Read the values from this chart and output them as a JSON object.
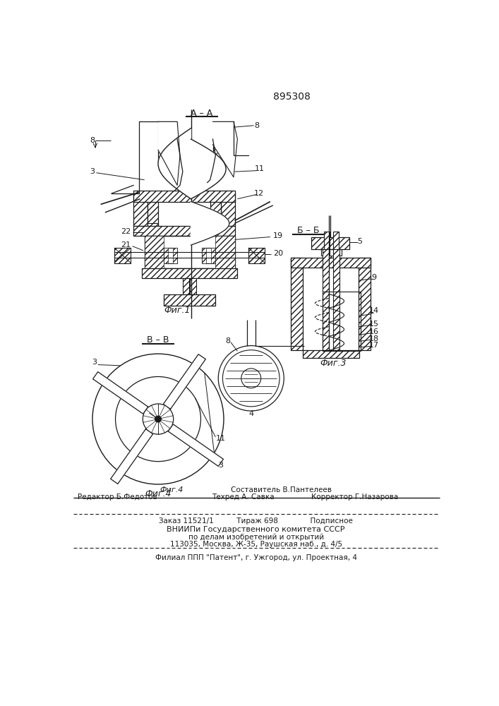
{
  "patent_number": "895308",
  "bg_color": "#ffffff",
  "line_color": "#1a1a1a",
  "footer_line1": "Фиг.4        Составитель В.Пантелеев",
  "footer_line2": "Редактор Б.Федотов      Техред А. Савка       Корректор Г.Назарова",
  "bottom_line1": "Заказ 11521/1          Тираж 698              Подписное",
  "bottom_line2": "ВНИИПи Государственного комитета СССР",
  "bottom_line3": "по делам изобретений и открытий",
  "bottom_line4": "113035, Москва, Ж-35, Раушская наб., д. 4/5",
  "last_line": "Филиал ППП \"Патент\", г. Ужгород, ул. Проектная, 4"
}
